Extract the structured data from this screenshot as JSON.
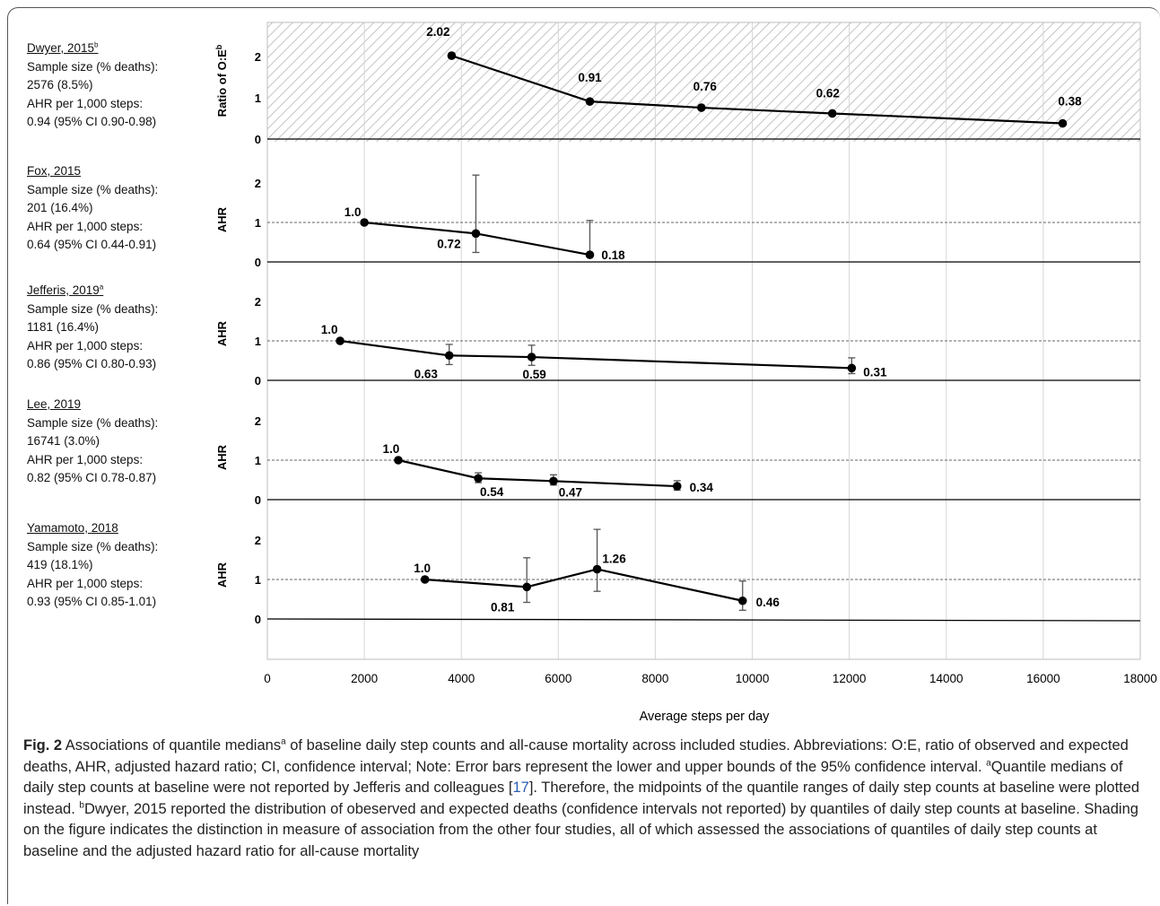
{
  "studies": [
    {
      "name": "Dwyer, 2015",
      "name_sup": "b",
      "sample_label": "Sample size (% deaths):",
      "sample": "2576 (8.5%)",
      "ahr_label": "AHR per 1,000 steps:",
      "ahr": "0.94 (95% CI 0.90-0.98)"
    },
    {
      "name": "Fox, 2015",
      "name_sup": "",
      "sample_label": "Sample size (% deaths):",
      "sample": "201 (16.4%)",
      "ahr_label": "AHR per 1,000 steps:",
      "ahr": "0.64 (95% CI 0.44-0.91)"
    },
    {
      "name": "Jefferis, 2019",
      "name_sup": "a",
      "sample_label": "Sample size (% deaths):",
      "sample": "1181 (16.4%)",
      "ahr_label": "AHR per 1,000 steps:",
      "ahr": "0.86 (95% CI 0.80-0.93)"
    },
    {
      "name": "Lee, 2019",
      "name_sup": "",
      "sample_label": "Sample size (% deaths):",
      "sample": "16741 (3.0%)",
      "ahr_label": "AHR per 1,000 steps:",
      "ahr": "0.82 (95% CI 0.78-0.87)"
    },
    {
      "name": "Yamamoto, 2018",
      "name_sup": "",
      "sample_label": "Sample size (% deaths):",
      "sample": "419 (18.1%)",
      "ahr_label": "AHR per 1,000 steps:",
      "ahr": "0.93 (95% CI 0.85-1.01)"
    }
  ],
  "chart_data": {
    "type": "line",
    "xlabel": "Average steps per day",
    "xlim": [
      0,
      18000
    ],
    "x_ticks": [
      "0",
      "2000",
      "4000",
      "6000",
      "8000",
      "10000",
      "12000",
      "14000",
      "16000",
      "18000"
    ],
    "x_tick_values": [
      0,
      2000,
      4000,
      6000,
      8000,
      10000,
      12000,
      14000,
      16000,
      18000
    ],
    "ylim": [
      0,
      3
    ],
    "y_ticks": [
      "0",
      "1",
      "2"
    ],
    "reference_line_y": 1,
    "grid": "vertical",
    "panels": [
      {
        "study": "Dwyer, 2015",
        "ylabel": "Ratio of O:E",
        "ylabel_sup": "b",
        "shaded": true,
        "points": [
          {
            "x": 3800,
            "y": 2.02,
            "label": "2.02"
          },
          {
            "x": 6650,
            "y": 0.91,
            "label": "0.91"
          },
          {
            "x": 8950,
            "y": 0.76,
            "label": "0.76"
          },
          {
            "x": 11650,
            "y": 0.62,
            "label": "0.62"
          },
          {
            "x": 16400,
            "y": 0.38,
            "label": "0.38"
          }
        ]
      },
      {
        "study": "Fox, 2015",
        "ylabel": "AHR",
        "ylabel_sup": "",
        "shaded": false,
        "points": [
          {
            "x": 2000,
            "y": 1.0,
            "label": "1.0"
          },
          {
            "x": 4300,
            "y": 0.72,
            "lo": 0.24,
            "hi": 2.2,
            "label": "0.72"
          },
          {
            "x": 6650,
            "y": 0.18,
            "lo": 0.18,
            "hi": 1.05,
            "label": "0.18"
          }
        ]
      },
      {
        "study": "Jefferis, 2019",
        "ylabel": "AHR",
        "ylabel_sup": "",
        "shaded": false,
        "points": [
          {
            "x": 1500,
            "y": 1.0,
            "label": "1.0"
          },
          {
            "x": 3750,
            "y": 0.63,
            "lo": 0.4,
            "hi": 0.91,
            "label": "0.63"
          },
          {
            "x": 5450,
            "y": 0.59,
            "lo": 0.38,
            "hi": 0.89,
            "label": "0.59"
          },
          {
            "x": 12050,
            "y": 0.31,
            "lo": 0.17,
            "hi": 0.57,
            "label": "0.31"
          }
        ]
      },
      {
        "study": "Lee, 2019",
        "ylabel": "AHR",
        "ylabel_sup": "",
        "shaded": false,
        "points": [
          {
            "x": 2700,
            "y": 1.0,
            "label": "1.0"
          },
          {
            "x": 4350,
            "y": 0.54,
            "lo": 0.43,
            "hi": 0.68,
            "label": "0.54"
          },
          {
            "x": 5900,
            "y": 0.47,
            "lo": 0.37,
            "hi": 0.63,
            "label": "0.47"
          },
          {
            "x": 8450,
            "y": 0.34,
            "lo": 0.24,
            "hi": 0.48,
            "label": "0.34"
          }
        ]
      },
      {
        "study": "Yamamoto, 2018",
        "ylabel": "AHR",
        "ylabel_sup": "",
        "shaded": false,
        "points": [
          {
            "x": 3250,
            "y": 1.0,
            "label": "1.0"
          },
          {
            "x": 5350,
            "y": 0.81,
            "lo": 0.42,
            "hi": 1.55,
            "label": "0.81"
          },
          {
            "x": 6800,
            "y": 1.26,
            "lo": 0.7,
            "hi": 2.27,
            "label": "1.26"
          },
          {
            "x": 9800,
            "y": 0.46,
            "lo": 0.22,
            "hi": 0.96,
            "label": "0.46"
          }
        ]
      }
    ]
  },
  "caption": {
    "fig_label": "Fig. 2",
    "text_1": " Associations of quantile medians",
    "sup_1": "a",
    "text_2": " of baseline daily step counts and all-cause mortality across included studies. Abbreviations: O:E, ratio of observed and expected deaths, AHR, adjusted hazard ratio; CI, confidence interval; Note: Error bars represent the lower and upper bounds of the 95% confidence interval. ",
    "sup_2": "a",
    "text_3": "Quantile medians of daily step counts at baseline were not reported by Jefferis and colleagues [",
    "ref": "17",
    "text_4": "]. Therefore, the midpoints of the quantile ranges of daily step counts at baseline were plotted instead. ",
    "sup_3": "b",
    "text_5": "Dwyer, 2015 reported the distribution of obeserved and expected deaths (confidence intervals not reported) by quantiles of daily step counts at baseline. Shading on the figure indicates the distinction in measure of association from the other four studies, all of which assessed the associations of quantiles of daily step counts at baseline and the adjusted hazard ratio for all-cause mortality"
  }
}
